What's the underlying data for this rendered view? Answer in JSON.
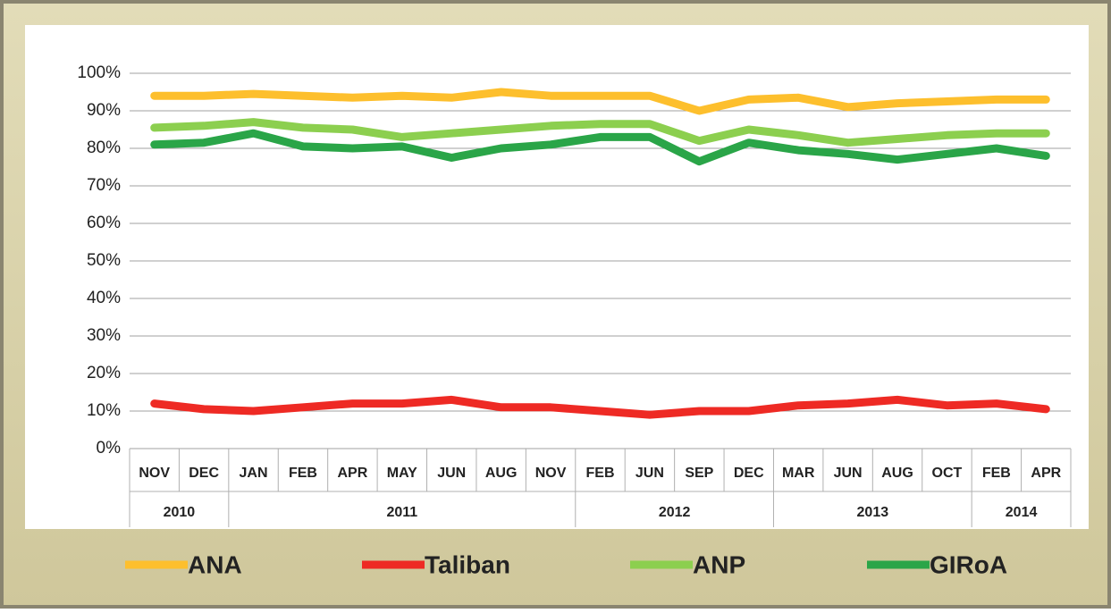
{
  "chart_data": {
    "type": "line",
    "groups": [
      {
        "label": "2010",
        "categories": [
          "NOV",
          "DEC"
        ]
      },
      {
        "label": "2011",
        "categories": [
          "JAN",
          "FEB",
          "APR",
          "MAY",
          "JUN",
          "AUG",
          "NOV"
        ]
      },
      {
        "label": "2012",
        "categories": [
          "FEB",
          "JUN",
          "SEP",
          "DEC"
        ]
      },
      {
        "label": "2013",
        "categories": [
          "MAR",
          "JUN",
          "AUG",
          "OCT"
        ]
      },
      {
        "label": "2014",
        "categories": [
          "FEB",
          "APR"
        ]
      }
    ],
    "series": [
      {
        "name": "ANA",
        "color": "#fdbf2d",
        "values": [
          94,
          94,
          94.5,
          94,
          93.5,
          94,
          93.5,
          95,
          94,
          94,
          94,
          90,
          93,
          93.5,
          91,
          92,
          92.5,
          93,
          93
        ]
      },
      {
        "name": "Taliban",
        "color": "#ee2a24",
        "values": [
          12,
          10.5,
          10,
          11,
          12,
          12,
          13,
          11,
          11,
          10,
          9,
          10,
          10,
          11.5,
          12,
          13,
          11.5,
          12,
          10.5
        ]
      },
      {
        "name": "ANP",
        "color": "#8ccf4f",
        "values": [
          85.5,
          86,
          87,
          85.5,
          85,
          83,
          84,
          85,
          86,
          86.5,
          86.5,
          82,
          85,
          83.5,
          81.5,
          82.5,
          83.5,
          84,
          84
        ]
      },
      {
        "name": "GIRoA",
        "color": "#2aa548",
        "values": [
          81,
          81.5,
          84,
          80.5,
          80,
          80.5,
          77.5,
          80,
          81,
          83,
          83,
          76.5,
          81.5,
          79.5,
          78.5,
          77,
          78.5,
          80,
          78
        ]
      }
    ],
    "ylim": [
      0,
      100
    ],
    "yticks": [
      {
        "value": 0,
        "label": "0%"
      },
      {
        "value": 10,
        "label": "10%"
      },
      {
        "value": 20,
        "label": "20%"
      },
      {
        "value": 30,
        "label": "30%"
      },
      {
        "value": 40,
        "label": "40%"
      },
      {
        "value": 50,
        "label": "50%"
      },
      {
        "value": 60,
        "label": "60%"
      },
      {
        "value": 70,
        "label": "70%"
      },
      {
        "value": 80,
        "label": "80%"
      },
      {
        "value": 90,
        "label": "90%"
      },
      {
        "value": 100,
        "label": "100%"
      }
    ],
    "grid": true,
    "legend": "bottom"
  }
}
